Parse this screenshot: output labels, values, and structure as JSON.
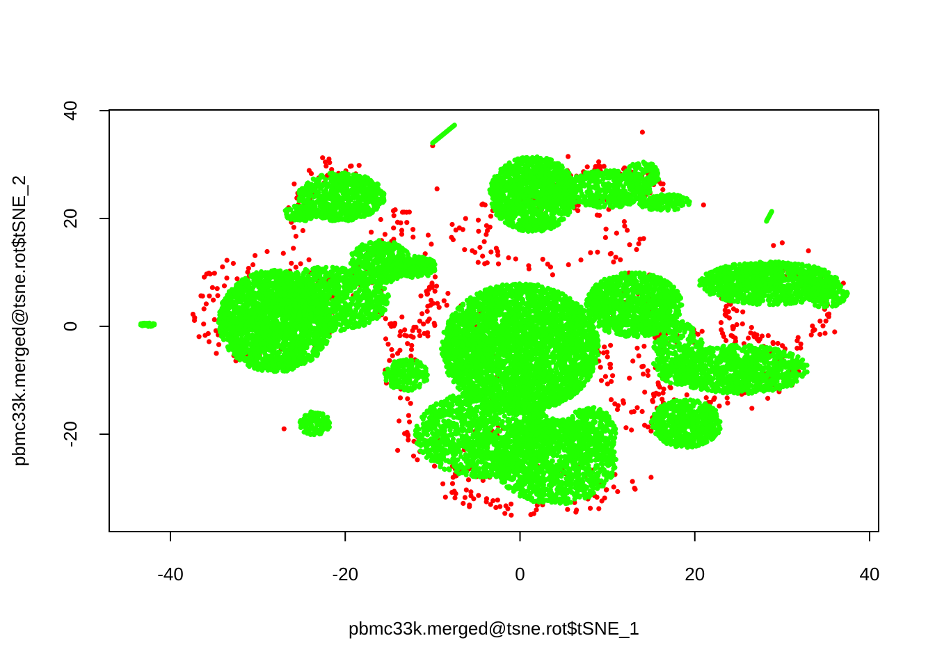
{
  "chart_data": {
    "type": "scatter",
    "title": "",
    "xlabel": "pbmc33k.merged@tsne.rot$tSNE_1",
    "ylabel": "pbmc33k.merged@tsne.rot$tSNE_2",
    "xlim": [
      -47,
      41
    ],
    "ylim": [
      -38,
      40
    ],
    "xticks": [
      -40,
      -20,
      0,
      20,
      40
    ],
    "yticks": [
      -20,
      0,
      20,
      40
    ],
    "grid": false,
    "legend": "none",
    "series": [
      {
        "color": "#ff0000",
        "clusters": [
          {
            "cx": -29,
            "cy": 3,
            "rx": 7,
            "ry": 9
          },
          {
            "cx": -21,
            "cy": 18,
            "rx": 5,
            "ry": 11
          },
          {
            "cx": -13,
            "cy": 8,
            "rx": 3,
            "ry": 12
          },
          {
            "cx": -8,
            "cy": -10,
            "rx": 6,
            "ry": 14
          },
          {
            "cx": 3,
            "cy": 17,
            "rx": 9,
            "ry": 6
          },
          {
            "cx": 13,
            "cy": -5,
            "rx": 3.5,
            "ry": 13
          },
          {
            "cx": 22,
            "cy": -8,
            "rx": 8,
            "ry": 7
          },
          {
            "cx": 30,
            "cy": 3,
            "rx": 6,
            "ry": 6
          },
          {
            "cx": 2,
            "cy": -30,
            "rx": 9,
            "ry": 4
          },
          {
            "cx": 9,
            "cy": 26,
            "rx": 6,
            "ry": 3
          }
        ],
        "points": [
          {
            "x": -10,
            "y": 33.5
          },
          {
            "x": 14,
            "y": 36
          },
          {
            "x": 21,
            "y": 22.5
          },
          {
            "x": -27,
            "y": -19
          },
          {
            "x": 29,
            "y": 15
          },
          {
            "x": 30,
            "y": 15.5
          },
          {
            "x": 33,
            "y": 14
          },
          {
            "x": -22,
            "y": 28
          },
          {
            "x": 9,
            "y": 30.5
          },
          {
            "x": 5.5,
            "y": 31.5
          },
          {
            "x": -4,
            "y": 22.5
          },
          {
            "x": -9.5,
            "y": 25.5
          },
          {
            "x": 15,
            "y": -28
          },
          {
            "x": 37,
            "y": 8
          },
          {
            "x": 35,
            "y": 1
          },
          {
            "x": -14,
            "y": -23
          },
          {
            "x": -1,
            "y": -35
          }
        ]
      },
      {
        "color": "#22ff00",
        "clusters": [
          {
            "cx": -28,
            "cy": 1,
            "rx": 6.5,
            "ry": 9.5,
            "n": 2200
          },
          {
            "cx": -22,
            "cy": 5,
            "rx": 7,
            "ry": 6,
            "n": 900
          },
          {
            "cx": -20.5,
            "cy": 24,
            "rx": 5,
            "ry": 4.5,
            "n": 700
          },
          {
            "cx": -16,
            "cy": 12,
            "rx": 3.5,
            "ry": 4,
            "n": 400
          },
          {
            "cx": -12,
            "cy": 11,
            "rx": 2.5,
            "ry": 2,
            "n": 200
          },
          {
            "cx": -25,
            "cy": 21,
            "rx": 2,
            "ry": 1.5,
            "n": 90
          },
          {
            "cx": -23.5,
            "cy": -18,
            "rx": 1.8,
            "ry": 2.2,
            "n": 120
          },
          {
            "cx": -42.7,
            "cy": 0.3,
            "rx": 1,
            "ry": 0.35,
            "n": 25
          },
          {
            "cx": 1.5,
            "cy": 24.5,
            "rx": 5,
            "ry": 7,
            "n": 1200
          },
          {
            "cx": 10,
            "cy": 25.5,
            "rx": 5,
            "ry": 3.5,
            "n": 400
          },
          {
            "cx": 14,
            "cy": 28,
            "rx": 2,
            "ry": 2.5,
            "n": 120
          },
          {
            "cx": 16.5,
            "cy": 23,
            "rx": 3,
            "ry": 1.6,
            "n": 120
          },
          {
            "cx": 0,
            "cy": -4,
            "rx": 9,
            "ry": 12,
            "n": 3500
          },
          {
            "cx": -4,
            "cy": -20,
            "rx": 8,
            "ry": 8,
            "n": 1300
          },
          {
            "cx": 4,
            "cy": -25,
            "rx": 7,
            "ry": 8,
            "n": 1200
          },
          {
            "cx": -13,
            "cy": -9,
            "rx": 2.5,
            "ry": 3,
            "n": 180
          },
          {
            "cx": 8,
            "cy": -20,
            "rx": 3,
            "ry": 5,
            "n": 300
          },
          {
            "cx": 13,
            "cy": 4,
            "rx": 5.5,
            "ry": 6,
            "n": 1000
          },
          {
            "cx": 19,
            "cy": -18,
            "rx": 4,
            "ry": 4.5,
            "n": 600
          },
          {
            "cx": 25,
            "cy": -8,
            "rx": 8,
            "ry": 4.5,
            "n": 900
          },
          {
            "cx": 28.5,
            "cy": 8,
            "rx": 8,
            "ry": 4,
            "n": 1100
          },
          {
            "cx": 35,
            "cy": 6,
            "rx": 2.5,
            "ry": 2.5,
            "n": 150
          },
          {
            "cx": 18,
            "cy": -5,
            "rx": 3,
            "ry": 6,
            "n": 300
          }
        ],
        "strands": [
          {
            "x1": -10,
            "y1": 34,
            "x2": -7.5,
            "y2": 37.3,
            "n": 30
          },
          {
            "x1": 28.2,
            "y1": 19.5,
            "x2": 28.8,
            "y2": 21.3,
            "n": 12
          }
        ]
      }
    ]
  }
}
